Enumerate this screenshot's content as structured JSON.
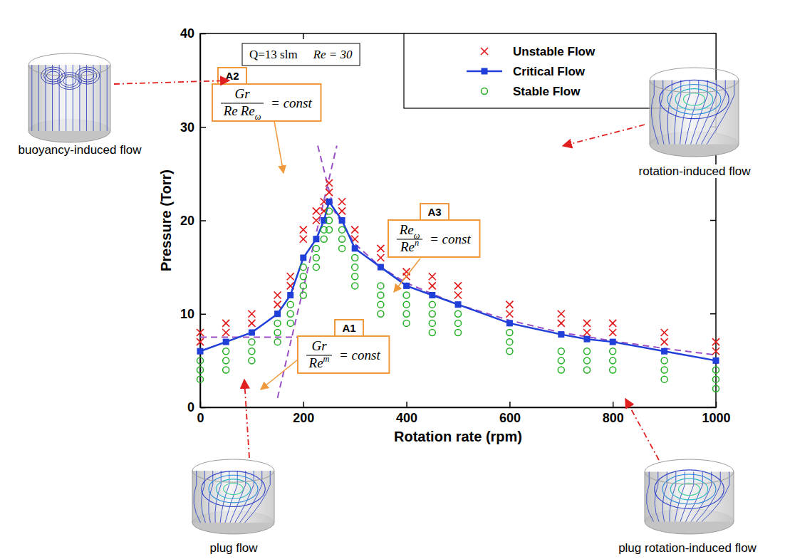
{
  "chart_data": {
    "type": "scatter",
    "x_label": "Rotation rate (rpm)",
    "y_label": "Pressure (Torr)",
    "xlim": [
      0,
      1000
    ],
    "xticks": [
      0,
      200,
      400,
      600,
      800,
      1000
    ],
    "ylim": [
      0,
      40
    ],
    "yticks": [
      0,
      10,
      20,
      30,
      40
    ],
    "grid": false,
    "legend": "top-right",
    "series": [
      {
        "name": "Unstable Flow",
        "type": "scatter",
        "color": "#e31a1c",
        "marker": "x",
        "line_style": "none",
        "x": [
          0,
          0,
          50,
          50,
          100,
          100,
          150,
          150,
          175,
          175,
          200,
          200,
          225,
          225,
          240,
          240,
          250,
          250,
          275,
          275,
          300,
          300,
          350,
          350,
          400,
          400,
          450,
          450,
          500,
          500,
          600,
          600,
          700,
          700,
          750,
          750,
          800,
          800,
          900,
          900,
          1000,
          1000
        ],
        "values": [
          8,
          7,
          9,
          8,
          10,
          9,
          12,
          11,
          14,
          13,
          19,
          18,
          21,
          20,
          22,
          21,
          24,
          23,
          22,
          21,
          19,
          18,
          17,
          16,
          14.5,
          14,
          14,
          13,
          13,
          12,
          11,
          10,
          10,
          9,
          9,
          8,
          9,
          8,
          8,
          7,
          7,
          6
        ]
      },
      {
        "name": "Critical Flow",
        "type": "line",
        "color": "#1f3fd8",
        "marker": "square",
        "line_style": "solid",
        "x": [
          0,
          50,
          100,
          150,
          175,
          200,
          225,
          240,
          250,
          275,
          300,
          350,
          400,
          450,
          500,
          600,
          700,
          750,
          800,
          900,
          1000
        ],
        "values": [
          6,
          7,
          8,
          10,
          12,
          16,
          18,
          20,
          22,
          20,
          17,
          15,
          13,
          12,
          11,
          9,
          7.8,
          7.3,
          7,
          6,
          5
        ]
      },
      {
        "name": "Stable Flow",
        "type": "scatter",
        "color": "#22b022",
        "marker": "circle",
        "line_style": "none",
        "x": [
          0,
          0,
          0,
          50,
          50,
          50,
          100,
          100,
          100,
          150,
          150,
          150,
          175,
          175,
          175,
          200,
          200,
          200,
          200,
          225,
          225,
          225,
          240,
          240,
          250,
          250,
          250,
          275,
          275,
          275,
          300,
          300,
          300,
          300,
          350,
          350,
          350,
          350,
          400,
          400,
          400,
          400,
          450,
          450,
          450,
          450,
          500,
          500,
          500,
          600,
          600,
          600,
          700,
          700,
          700,
          750,
          750,
          750,
          800,
          800,
          800,
          900,
          900,
          900,
          1000,
          1000,
          1000
        ],
        "values": [
          5,
          4,
          3,
          6,
          5,
          4,
          7,
          6,
          5,
          9,
          8,
          7,
          11,
          10,
          9,
          15,
          14,
          13,
          12,
          17,
          16,
          15,
          19,
          18,
          21,
          20,
          19,
          19,
          18,
          17,
          16,
          15,
          14,
          13,
          13,
          12,
          11,
          10,
          12,
          11,
          10,
          9,
          11,
          10,
          9,
          8,
          10,
          9,
          8,
          8,
          7,
          6,
          6,
          5,
          4,
          6,
          5,
          4,
          6,
          5,
          4,
          5,
          4,
          3,
          4,
          3,
          2
        ]
      }
    ],
    "fit_lines": [
      {
        "color": "#9b4fc4",
        "line_style": "dashed",
        "x": [
          0,
          190
        ],
        "values": [
          7.5,
          7.5
        ]
      },
      {
        "color": "#9b4fc4",
        "line_style": "dashed",
        "x": [
          150,
          265
        ],
        "values": [
          1,
          28
        ]
      },
      {
        "color": "#9b4fc4",
        "line_style": "dashed",
        "x": [
          228,
          260,
          300,
          350,
          400,
          500,
          600,
          700,
          800,
          900,
          1000
        ],
        "values": [
          28,
          21,
          17.5,
          15,
          13.3,
          11,
          9.3,
          8,
          7.1,
          6.3,
          5.6
        ]
      }
    ],
    "condition": [
      "Q=13 slm",
      "Re = 30"
    ],
    "annotations": [
      {
        "label": "A1",
        "numerator": [
          {
            "text": "Gr"
          }
        ],
        "denominator": [
          {
            "text": "Re",
            "sup": "m"
          }
        ],
        "rhs": "= const"
      },
      {
        "label": "A2",
        "numerator": [
          {
            "text": "Gr"
          }
        ],
        "denominator": [
          {
            "text": "Re"
          },
          {
            "text": "Re",
            "sub": "ω"
          }
        ],
        "rhs": "= const"
      },
      {
        "label": "A3",
        "numerator": [
          {
            "text": "Re",
            "sub": "ω"
          }
        ],
        "denominator": [
          {
            "text": "Re",
            "sup": "n"
          }
        ],
        "rhs": "= const"
      }
    ],
    "flow_regimes": [
      "buoyancy-induced flow",
      "plug flow",
      "rotation-induced flow",
      "plug rotation-induced flow"
    ]
  }
}
